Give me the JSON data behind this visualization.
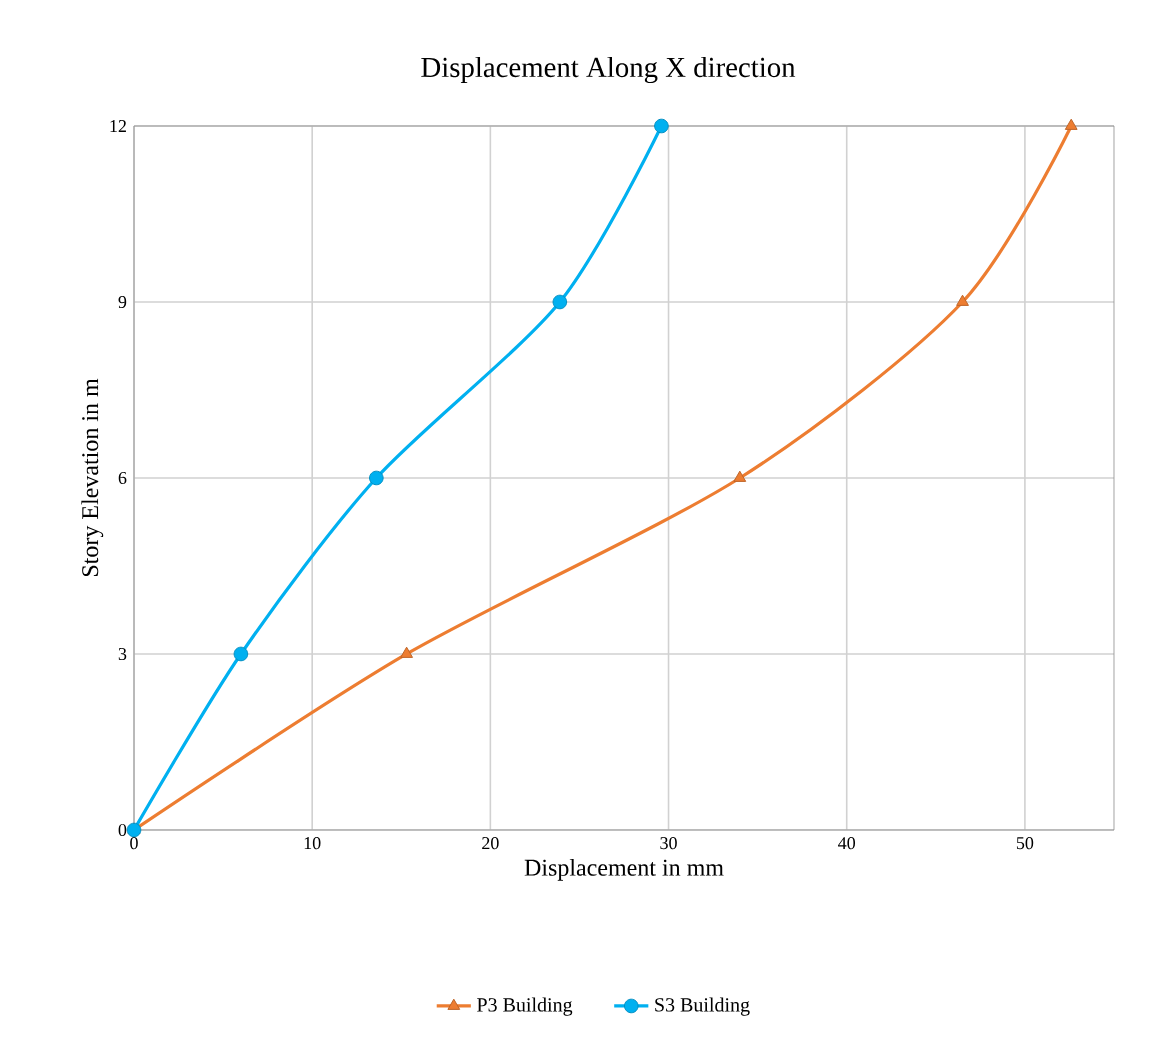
{
  "chart_data": {
    "type": "line",
    "title": "Displacement Along X direction",
    "xlabel": "Displacement in mm",
    "ylabel": "Story Elevation in m",
    "xlim": [
      0,
      55
    ],
    "xticks": [
      0,
      10,
      20,
      30,
      40,
      50
    ],
    "ylim": [
      0,
      12
    ],
    "yticks": [
      0,
      3,
      6,
      9,
      12
    ],
    "grid": true,
    "legend": "bottom",
    "line_style": "solid",
    "series": [
      {
        "name": "P3 Building",
        "color": "#ed7d31",
        "marker": "triangle",
        "x": [
          0,
          15.3,
          34.0,
          46.5,
          52.6
        ],
        "values": [
          0,
          3,
          6,
          9,
          12
        ]
      },
      {
        "name": "S3 Building",
        "color": "#00b0f0",
        "marker": "circle",
        "x": [
          0,
          6,
          13.6,
          23.9,
          29.6
        ],
        "values": [
          0,
          3,
          6,
          9,
          12
        ]
      }
    ]
  }
}
